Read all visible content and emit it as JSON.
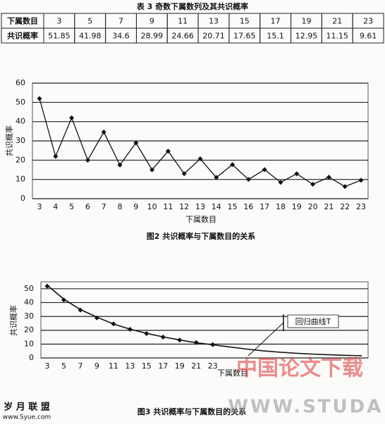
{
  "table": {
    "title": "表 3  奇数下属数列及其共识概率",
    "rows": [
      [
        "下属数目",
        "3",
        "5",
        "7",
        "9",
        "11",
        "13",
        "15",
        "17",
        "19",
        "21",
        "23"
      ],
      [
        "共识概率",
        "51.85",
        "41.98",
        "34.6",
        "28.99",
        "24.66",
        "20.71",
        "17.65",
        "15.1",
        "12.95",
        "11.15",
        "9.61"
      ]
    ]
  },
  "figure2": {
    "type": "line",
    "caption": "图2 共识概率与下属数目的关系",
    "x_label": "下属数目",
    "y_label": "共识概率",
    "categories": [
      "3",
      "4",
      "5",
      "6",
      "7",
      "8",
      "9",
      "10",
      "11",
      "12",
      "13",
      "14",
      "15",
      "16",
      "17",
      "18",
      "19",
      "20",
      "21",
      "22",
      "23"
    ],
    "values": [
      52,
      22,
      42,
      20,
      34.6,
      17.5,
      29,
      15,
      24.7,
      13,
      20.7,
      11,
      17.7,
      10,
      15.1,
      8.5,
      12.95,
      7.5,
      11.15,
      6.3,
      9.6
    ],
    "color": "#111111",
    "ylim": [
      0,
      60
    ],
    "yticks": [
      0,
      10,
      20,
      30,
      40,
      50,
      60
    ],
    "grid": true
  },
  "figure3": {
    "type": "line",
    "caption": "图3 共识概率与下属数目的关系",
    "x_label": "下属数目",
    "y_label": "共识概率",
    "annotation": "回归曲线T",
    "categories": [
      "3",
      "5",
      "7",
      "9",
      "11",
      "13",
      "15",
      "17",
      "19",
      "21",
      "23",
      null,
      null,
      null,
      null,
      null,
      null,
      null,
      null,
      null
    ],
    "values": [
      51.85,
      41.98,
      34.6,
      28.99,
      24.66,
      20.71,
      17.65,
      15.1,
      12.95,
      11.15,
      9.61,
      null,
      null,
      null,
      null,
      null,
      null,
      null,
      null,
      null
    ],
    "regression": [
      52.5,
      42.5,
      35,
      29.5,
      24.5,
      20.8,
      17.8,
      15.2,
      13,
      11,
      9.5,
      8,
      6.5,
      5.2,
      4.2,
      3.4,
      2.8,
      2.3,
      1.9,
      1.6
    ],
    "color": "#111111",
    "ylim": [
      0,
      55
    ],
    "yticks": [
      0,
      10,
      20,
      30,
      40,
      50
    ],
    "grid": true
  },
  "watermarks": [
    "中国论文下载",
    "WWW.STUDA.",
    "岁 月 联 盟",
    "www.Syue.com"
  ]
}
